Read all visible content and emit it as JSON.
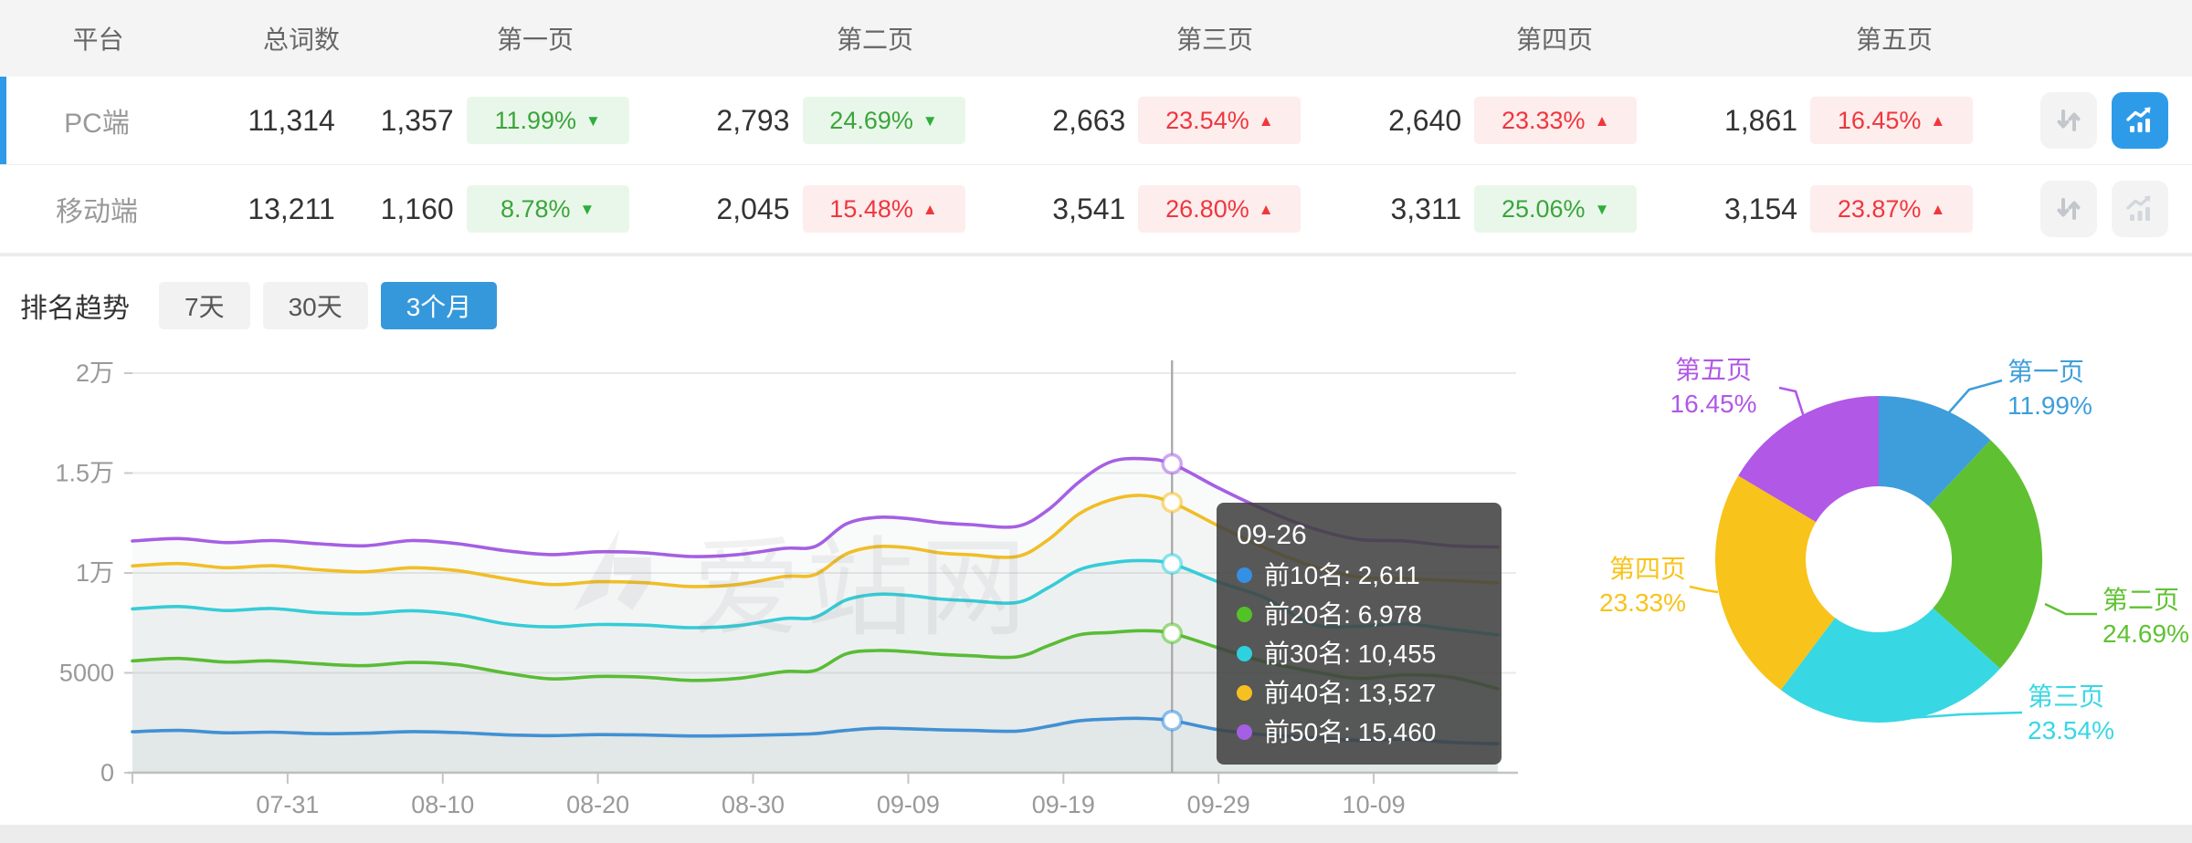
{
  "table": {
    "headers": [
      "平台",
      "总词数",
      "第一页",
      "第二页",
      "第三页",
      "第四页",
      "第五页"
    ],
    "rows": [
      {
        "platform": "PC端",
        "selected": true,
        "total": "11,314",
        "pages": [
          {
            "count": "1,357",
            "pct": "11.99%",
            "direction": "down",
            "tone": "green"
          },
          {
            "count": "2,793",
            "pct": "24.69%",
            "direction": "down",
            "tone": "green"
          },
          {
            "count": "2,663",
            "pct": "23.54%",
            "direction": "up",
            "tone": "red"
          },
          {
            "count": "2,640",
            "pct": "23.33%",
            "direction": "up",
            "tone": "red"
          },
          {
            "count": "1,861",
            "pct": "16.45%",
            "direction": "up",
            "tone": "red"
          }
        ],
        "trend_button_active": true
      },
      {
        "platform": "移动端",
        "selected": false,
        "total": "13,211",
        "pages": [
          {
            "count": "1,160",
            "pct": "8.78%",
            "direction": "down",
            "tone": "green"
          },
          {
            "count": "2,045",
            "pct": "15.48%",
            "direction": "up",
            "tone": "red"
          },
          {
            "count": "3,541",
            "pct": "26.80%",
            "direction": "up",
            "tone": "red"
          },
          {
            "count": "3,311",
            "pct": "25.06%",
            "direction": "down",
            "tone": "green"
          },
          {
            "count": "3,154",
            "pct": "23.87%",
            "direction": "up",
            "tone": "red"
          }
        ],
        "trend_button_active": false
      }
    ]
  },
  "trend": {
    "title": "排名趋势",
    "tabs": [
      {
        "label": "7天",
        "active": false
      },
      {
        "label": "30天",
        "active": false
      },
      {
        "label": "3个月",
        "active": true
      }
    ]
  },
  "watermark": "爱站网",
  "colors": {
    "accent_blue": "#2F9BE8",
    "tab_active": "#3598DB",
    "badge_green_text": "#3CA43C",
    "badge_red_text": "#F0363D",
    "axis_text": "#999999",
    "grid_line": "#EAEAEA",
    "hover_line": "#ABABAB",
    "tooltip_bg": "rgba(64,64,64,0.87)"
  },
  "chart_data": [
    {
      "type": "line",
      "title": "排名趋势",
      "x": [
        "07-21",
        "07-24",
        "07-27",
        "07-30",
        "08-02",
        "08-05",
        "08-08",
        "08-11",
        "08-14",
        "08-17",
        "08-20",
        "08-23",
        "08-26",
        "08-29",
        "09-01",
        "09-03",
        "09-05",
        "09-07",
        "09-09",
        "09-11",
        "09-13",
        "09-16",
        "09-18",
        "09-20",
        "09-22",
        "09-24",
        "09-26",
        "09-29",
        "10-02",
        "10-05",
        "10-08",
        "10-11",
        "10-14",
        "10-17"
      ],
      "series": [
        {
          "name": "前10名",
          "color": "#3390E3",
          "values": [
            2050,
            2120,
            2000,
            2030,
            1960,
            1980,
            2060,
            2010,
            1900,
            1860,
            1910,
            1890,
            1840,
            1860,
            1910,
            1960,
            2120,
            2230,
            2200,
            2150,
            2120,
            2080,
            2320,
            2600,
            2690,
            2720,
            2611,
            2150,
            1900,
            1760,
            1620,
            1680,
            1520,
            1450
          ]
        },
        {
          "name": "前20名",
          "color": "#53C226",
          "values": [
            5600,
            5720,
            5540,
            5600,
            5450,
            5360,
            5520,
            5400,
            5000,
            4700,
            4820,
            4780,
            4620,
            4720,
            5060,
            5120,
            5950,
            6120,
            6060,
            5930,
            5860,
            5800,
            6350,
            6900,
            7020,
            7110,
            6978,
            6250,
            5550,
            5080,
            4720,
            4900,
            4780,
            4200
          ]
        },
        {
          "name": "前30名",
          "color": "#2ED2DF",
          "values": [
            8200,
            8320,
            8120,
            8220,
            8010,
            7960,
            8110,
            7910,
            7460,
            7300,
            7420,
            7390,
            7260,
            7360,
            7720,
            7780,
            8650,
            8930,
            8870,
            8700,
            8610,
            8520,
            9250,
            10150,
            10500,
            10620,
            10455,
            9550,
            8750,
            7450,
            7330,
            7450,
            7180,
            6900
          ]
        },
        {
          "name": "前40名",
          "color": "#F6C021",
          "values": [
            10350,
            10470,
            10260,
            10360,
            10160,
            10060,
            10260,
            10110,
            9720,
            9420,
            9560,
            9510,
            9320,
            9420,
            9820,
            9920,
            10950,
            11320,
            11260,
            11010,
            10910,
            10820,
            11650,
            12950,
            13650,
            13880,
            13527,
            12350,
            11250,
            10350,
            9800,
            9720,
            9620,
            9500
          ]
        },
        {
          "name": "前50名",
          "color": "#A55FE3",
          "values": [
            11600,
            11720,
            11520,
            11620,
            11460,
            11360,
            11620,
            11460,
            11120,
            10920,
            11060,
            11010,
            10820,
            10920,
            11230,
            11330,
            12450,
            12780,
            12720,
            12520,
            12420,
            12330,
            13150,
            14550,
            15550,
            15720,
            15460,
            14250,
            13150,
            12250,
            11680,
            11600,
            11360,
            11300
          ]
        }
      ],
      "ylim": [
        0,
        20000
      ],
      "ytick_labels": [
        "0",
        "5000",
        "1万",
        "1.5万",
        "2万"
      ],
      "xtick_labels": [
        "07-31",
        "08-10",
        "08-20",
        "08-30",
        "09-09",
        "09-19",
        "09-29",
        "10-09"
      ],
      "grid": true,
      "legend": "none",
      "tooltip": {
        "date": "09-26",
        "items": [
          {
            "name": "前10名",
            "value": "2,611"
          },
          {
            "name": "前20名",
            "value": "6,978"
          },
          {
            "name": "前30名",
            "value": "10,455"
          },
          {
            "name": "前40名",
            "value": "13,527"
          },
          {
            "name": "前50名",
            "value": "15,460"
          }
        ]
      }
    },
    {
      "type": "pie",
      "donut": true,
      "items": [
        {
          "label": "第一页",
          "value": 11.99,
          "display": "11.99%",
          "color": "#3D9EDB"
        },
        {
          "label": "第二页",
          "value": 24.69,
          "display": "24.69%",
          "color": "#5FC131"
        },
        {
          "label": "第三页",
          "value": 23.54,
          "display": "23.54%",
          "color": "#38D7E4"
        },
        {
          "label": "第四页",
          "value": 23.33,
          "display": "23.33%",
          "color": "#F8C31A"
        },
        {
          "label": "第五页",
          "value": 16.45,
          "display": "16.45%",
          "color": "#B158E6"
        }
      ]
    }
  ]
}
